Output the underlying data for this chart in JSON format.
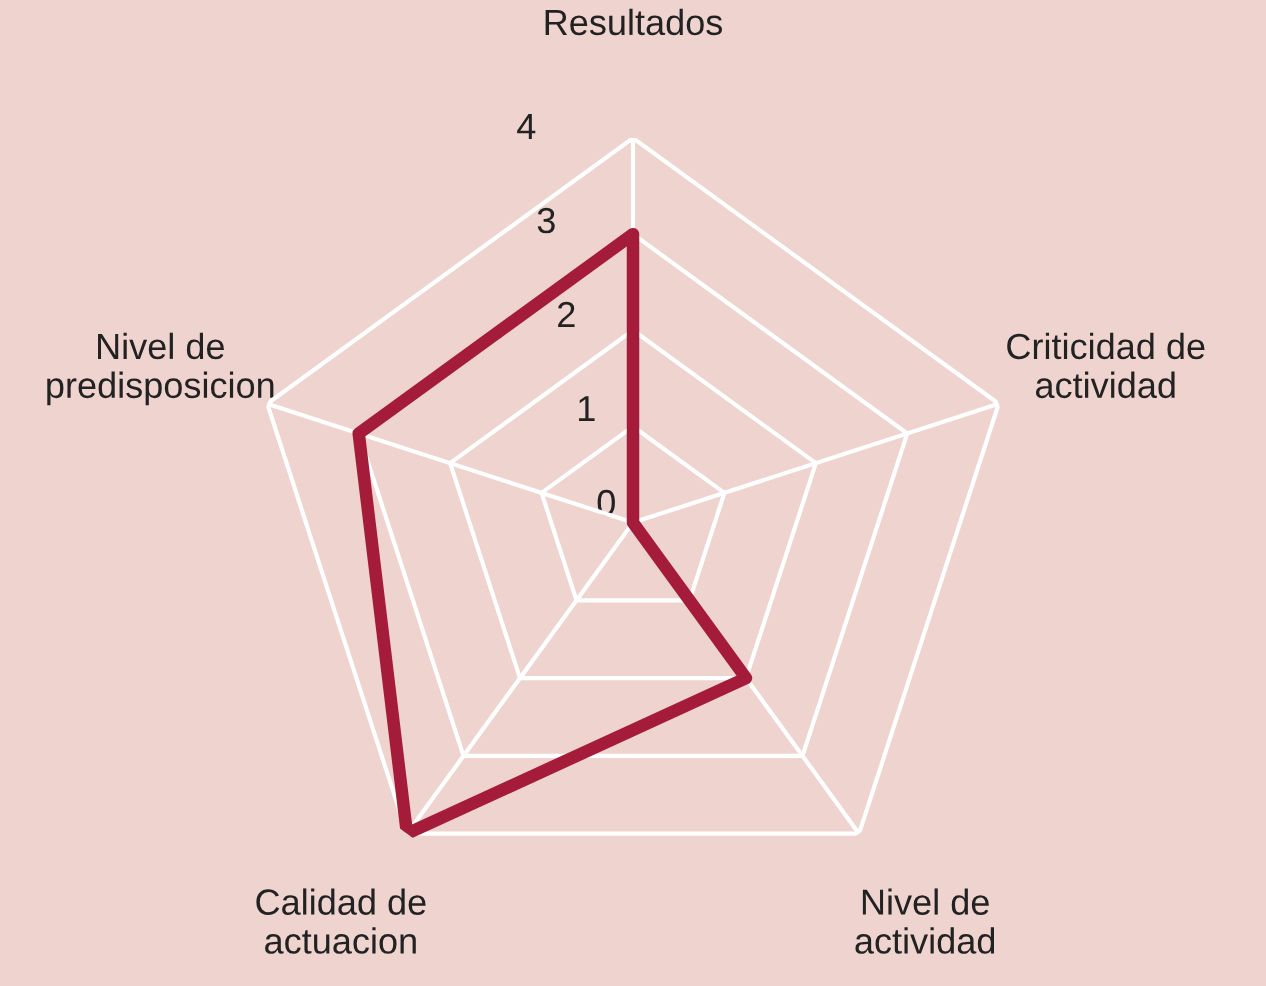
{
  "chart_data": {
    "type": "radar",
    "categories": [
      "Resultados",
      "Criticidad de\nactividad",
      "Nivel de\nactividad",
      "Calidad de\nactuacion",
      "Nivel de\npredisposicion"
    ],
    "series": [
      {
        "color": "#a51c3a",
        "values": [
          3,
          0,
          2,
          4,
          3
        ]
      }
    ],
    "ylim": [
      0,
      4
    ],
    "yticks": [
      0,
      1,
      2,
      3,
      4
    ],
    "grid": true,
    "marker": "none",
    "line_style": "solid"
  }
}
